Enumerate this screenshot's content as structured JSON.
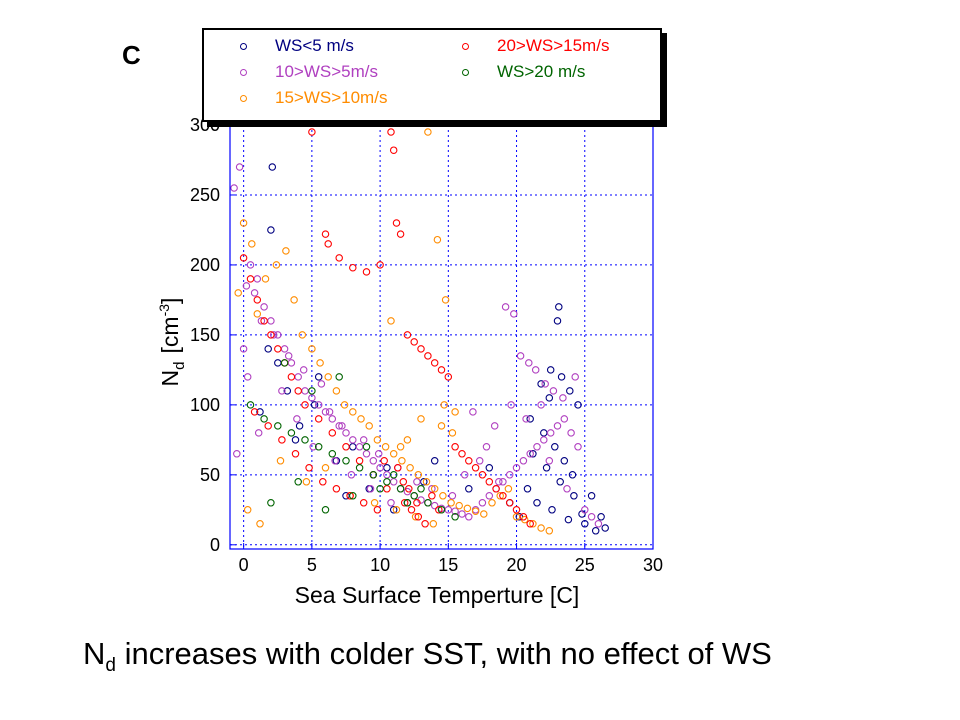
{
  "panel_label": "C",
  "caption": {
    "prefix": "N",
    "subscript": "d",
    "rest": " increases with colder SST, with no effect of WS"
  },
  "colors": {
    "ws_lt5": "#000080",
    "ws_5_10": "#b040c0",
    "ws_10_15": "#ff8c00",
    "ws_15_20": "#ff0000",
    "ws_gt20": "#006400",
    "grid": "#0000ff"
  },
  "chart_data": {
    "type": "scatter",
    "xlabel": "Sea Surface Temperture [C]",
    "ylabel": "N",
    "ylabel_sub": "d",
    "ylabel_unit_open": "[cm",
    "ylabel_unit_sup": "-3",
    "ylabel_unit_close": "]",
    "xlim": [
      -1,
      30
    ],
    "ylim": [
      -3,
      300
    ],
    "x_ticks": [
      "0",
      "5",
      "10",
      "15",
      "20",
      "25",
      "30"
    ],
    "y_ticks": [
      "0",
      "50",
      "100",
      "150",
      "200",
      "250",
      "300"
    ],
    "grid": true,
    "legend_position": "top",
    "series": [
      {
        "name": "WS<5 m/s",
        "color_key": "ws_lt5",
        "x": [
          2.1,
          2.0,
          23.1,
          23.0,
          22.5,
          23.3,
          21.8,
          22.4,
          23.9,
          24.5,
          25.5,
          26.5,
          25.0,
          26.2,
          21.0,
          22.0,
          22.8,
          23.5,
          24.1,
          20.8,
          21.5,
          22.6,
          23.8,
          24.8,
          25.8,
          21.2,
          22.2,
          23.2,
          24.2,
          1.2,
          2.5,
          3.2,
          4.1,
          5.5,
          6.8,
          8.0,
          9.2,
          10.5,
          12.0,
          13.2,
          1.8,
          3.8,
          5.2,
          7.5,
          11.0,
          14.0,
          16.5,
          18.0,
          19.5,
          20.2
        ],
        "y": [
          270,
          225,
          170,
          160,
          125,
          120,
          115,
          105,
          110,
          100,
          35,
          12,
          15,
          20,
          90,
          80,
          70,
          60,
          50,
          40,
          30,
          25,
          18,
          22,
          10,
          65,
          55,
          45,
          35,
          95,
          130,
          110,
          85,
          120,
          60,
          70,
          40,
          55,
          30,
          45,
          140,
          75,
          100,
          35,
          25,
          60,
          40,
          55,
          30,
          20
        ]
      },
      {
        "name": "10>WS>5m/s",
        "color_key": "ws_5_10",
        "x": [
          -0.7,
          -0.3,
          0.2,
          0.5,
          1.0,
          1.5,
          2.0,
          2.5,
          3.0,
          3.5,
          4.0,
          4.5,
          5.0,
          5.5,
          6.0,
          6.5,
          7.0,
          7.5,
          8.0,
          8.5,
          9.0,
          9.5,
          10.0,
          10.5,
          11.0,
          11.5,
          12.0,
          12.5,
          13.0,
          13.5,
          14.0,
          14.5,
          15.0,
          15.5,
          16.0,
          16.5,
          17.0,
          17.5,
          18.0,
          18.5,
          19.0,
          19.5,
          20.0,
          20.5,
          21.0,
          21.5,
          22.0,
          22.5,
          23.0,
          23.5,
          24.0,
          24.5,
          25.0,
          25.5,
          26.0,
          19.2,
          19.8,
          20.3,
          20.9,
          21.4,
          22.1,
          22.7,
          23.4,
          24.3,
          17.8,
          18.4,
          16.8,
          0.0,
          0.8,
          1.3,
          2.2,
          3.3,
          4.4,
          5.7,
          6.3,
          7.2,
          8.8,
          9.9,
          11.3,
          12.7,
          13.8,
          15.3,
          16.2,
          17.3,
          18.7,
          19.6,
          20.7,
          21.8,
          22.4,
          23.7,
          -0.5,
          0.3,
          1.1,
          2.8,
          3.9,
          5.1,
          6.7,
          7.9,
          9.3,
          10.8
        ],
        "y": [
          255,
          270,
          185,
          200,
          190,
          170,
          160,
          150,
          140,
          130,
          120,
          110,
          105,
          100,
          95,
          90,
          85,
          80,
          75,
          70,
          65,
          60,
          55,
          50,
          45,
          40,
          38,
          35,
          32,
          30,
          28,
          26,
          25,
          24,
          22,
          20,
          25,
          30,
          35,
          40,
          45,
          50,
          55,
          60,
          65,
          70,
          75,
          80,
          85,
          90,
          80,
          70,
          25,
          20,
          15,
          170,
          165,
          135,
          130,
          125,
          115,
          110,
          105,
          120,
          70,
          85,
          95,
          140,
          180,
          160,
          150,
          135,
          125,
          115,
          95,
          85,
          75,
          65,
          55,
          45,
          40,
          35,
          50,
          60,
          45,
          100,
          90,
          100,
          60,
          40,
          65,
          120,
          80,
          110,
          90,
          70,
          60,
          50,
          40,
          30
        ]
      },
      {
        "name": "15>WS>10m/s",
        "color_key": "ws_10_15",
        "x": [
          -0.4,
          0.0,
          0.6,
          1.0,
          1.6,
          2.4,
          3.1,
          3.7,
          4.3,
          5.0,
          5.6,
          6.2,
          6.8,
          7.4,
          8.0,
          8.6,
          9.2,
          9.8,
          10.4,
          11.0,
          11.6,
          12.2,
          12.8,
          13.4,
          14.0,
          14.6,
          15.2,
          15.8,
          16.4,
          17.0,
          17.6,
          18.2,
          18.8,
          19.4,
          20.0,
          20.6,
          21.2,
          21.8,
          22.4,
          13.5,
          14.2,
          14.8,
          15.3,
          14.5,
          13.0,
          12.0,
          11.5,
          10.8,
          14.7,
          15.5,
          0.3,
          1.2,
          2.7,
          4.6,
          6.0,
          7.8,
          9.6,
          11.2,
          12.6,
          13.9
        ],
        "y": [
          180,
          230,
          215,
          165,
          190,
          200,
          210,
          175,
          150,
          140,
          130,
          120,
          110,
          100,
          95,
          90,
          85,
          75,
          70,
          65,
          60,
          55,
          50,
          45,
          40,
          35,
          30,
          28,
          26,
          24,
          22,
          30,
          35,
          40,
          20,
          18,
          15,
          12,
          10,
          295,
          218,
          175,
          80,
          85,
          90,
          75,
          70,
          160,
          100,
          95,
          25,
          15,
          60,
          45,
          55,
          35,
          30,
          25,
          20,
          15
        ]
      },
      {
        "name": "20>WS>15m/s",
        "color_key": "ws_15_20",
        "x": [
          5.0,
          6.0,
          6.2,
          7.0,
          8.0,
          10.8,
          11.0,
          11.2,
          11.5,
          10.0,
          9.0,
          12.0,
          12.5,
          13.0,
          13.5,
          14.0,
          14.5,
          15.0,
          15.5,
          16.0,
          16.5,
          17.0,
          17.5,
          18.0,
          18.5,
          19.0,
          19.5,
          20.0,
          20.5,
          21.0,
          0.0,
          0.5,
          1.0,
          1.5,
          2.0,
          2.5,
          3.0,
          3.5,
          4.0,
          4.5,
          5.5,
          6.5,
          7.5,
          8.5,
          9.5,
          10.5,
          11.8,
          12.3,
          12.8,
          13.3,
          13.8,
          14.3,
          0.8,
          1.8,
          2.8,
          3.8,
          4.8,
          5.8,
          6.8,
          7.8,
          8.8,
          9.8,
          10.3,
          11.3,
          11.7,
          12.1,
          12.7
        ],
        "y": [
          295,
          222,
          215,
          205,
          198,
          295,
          282,
          230,
          222,
          200,
          195,
          150,
          145,
          140,
          135,
          130,
          125,
          120,
          70,
          65,
          60,
          55,
          50,
          45,
          40,
          35,
          30,
          25,
          20,
          15,
          205,
          190,
          175,
          160,
          150,
          140,
          130,
          120,
          110,
          100,
          90,
          80,
          70,
          60,
          50,
          40,
          30,
          25,
          20,
          15,
          35,
          25,
          95,
          85,
          75,
          65,
          55,
          45,
          40,
          35,
          30,
          25,
          60,
          55,
          45,
          40,
          30
        ]
      },
      {
        "name": "WS>20 m/s",
        "color_key": "ws_gt20",
        "x": [
          0.5,
          1.5,
          2.5,
          3.5,
          4.5,
          5.5,
          6.5,
          7.5,
          8.5,
          9.5,
          10.5,
          11.5,
          12.5,
          13.5,
          14.5,
          15.5,
          3.0,
          5.0,
          7.0,
          9.0,
          11.0,
          13.0,
          2.0,
          4.0,
          6.0,
          8.0,
          10.0,
          12.0
        ],
        "y": [
          100,
          90,
          85,
          80,
          75,
          70,
          65,
          60,
          55,
          50,
          45,
          40,
          35,
          30,
          25,
          20,
          130,
          110,
          120,
          70,
          50,
          40,
          30,
          45,
          25,
          35,
          40,
          30
        ]
      }
    ]
  }
}
